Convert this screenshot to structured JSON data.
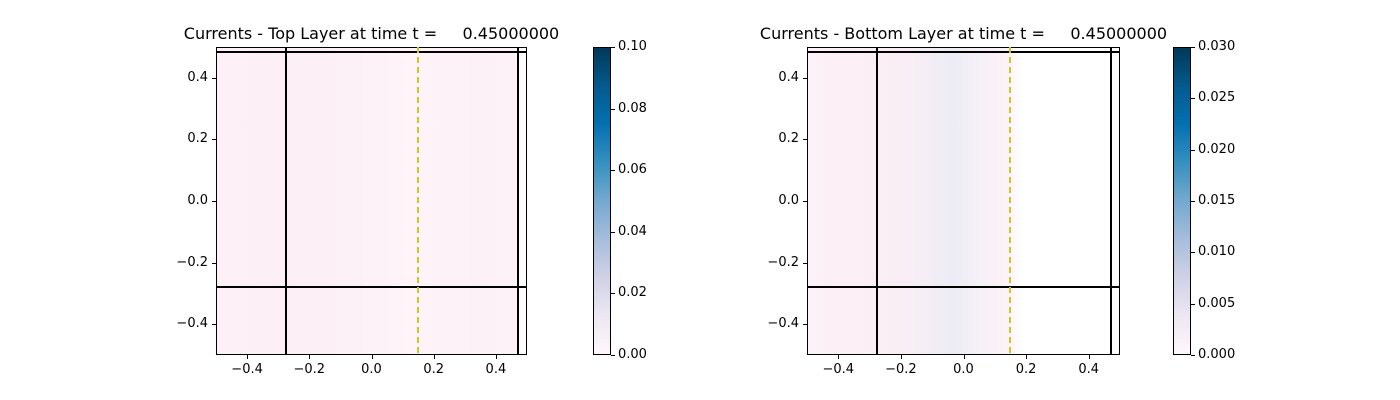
{
  "figure": {
    "background": "#ffffff",
    "text_color": "#000000",
    "spine_color": "#000000"
  },
  "chart_data": [
    {
      "type": "heatmap",
      "title": "Currents - Top Layer at time t =     0.45000000",
      "xlabel": "",
      "ylabel": "",
      "xlim": [
        -0.5,
        0.5
      ],
      "ylim": [
        -0.5,
        0.5
      ],
      "xticks": [
        -0.4,
        -0.2,
        0.0,
        0.2,
        0.4
      ],
      "yticks": [
        0.4,
        0.2,
        0.0,
        -0.2,
        -0.4
      ],
      "xtick_labels": [
        "−0.4",
        "−0.2",
        "0.0",
        "0.2",
        "0.4"
      ],
      "ytick_labels": [
        "0.4",
        "0.2",
        "0.0",
        "−0.2",
        "−0.4"
      ],
      "grid": false,
      "overlays": [
        {
          "name": "boundary-line-top",
          "orient": "h",
          "value": 0.483,
          "color": "#000000",
          "style": "solid",
          "thickness": 2
        },
        {
          "name": "boundary-line-bottom",
          "orient": "h",
          "value": -0.28,
          "color": "#000000",
          "style": "solid",
          "thickness": 2
        },
        {
          "name": "boundary-line-left",
          "orient": "v",
          "value": -0.275,
          "color": "#000000",
          "style": "solid",
          "thickness": 2
        },
        {
          "name": "boundary-line-right",
          "orient": "v",
          "value": 0.47,
          "color": "#000000",
          "style": "solid",
          "thickness": 2
        },
        {
          "name": "dashed-marker-line",
          "orient": "v",
          "value": 0.15,
          "color": "#d4c21f",
          "style": "dashed",
          "thickness": 2
        }
      ],
      "field_shading": [
        {
          "pos": 0,
          "color": "#fdf0f6"
        },
        {
          "pos": 25,
          "color": "#fcf0f6"
        },
        {
          "pos": 45,
          "color": "#fcf1f7"
        },
        {
          "pos": 58,
          "color": "#fdf3f9"
        },
        {
          "pos": 64,
          "color": "#fef4f9"
        },
        {
          "pos": 72,
          "color": "#fdf2f8"
        },
        {
          "pos": 86,
          "color": "#fcf1f7"
        },
        {
          "pos": 96.6,
          "color": "#fdf2f8"
        },
        {
          "pos": 97.2,
          "color": "#fefcfd"
        },
        {
          "pos": 100,
          "color": "#fefcfd"
        }
      ],
      "colorbar": {
        "vmin": 0.0,
        "vmax": 0.1,
        "tick_labels": [
          "0.10",
          "0.08",
          "0.06",
          "0.04",
          "0.02",
          "0.00"
        ],
        "colormap": "PuBu",
        "gradient": [
          {
            "pos": 0,
            "color": "#023858"
          },
          {
            "pos": 12.5,
            "color": "#045a8d"
          },
          {
            "pos": 25,
            "color": "#0570b0"
          },
          {
            "pos": 37.5,
            "color": "#3690c0"
          },
          {
            "pos": 50,
            "color": "#74a9cf"
          },
          {
            "pos": 62.5,
            "color": "#a6bddb"
          },
          {
            "pos": 75,
            "color": "#d0d1e6"
          },
          {
            "pos": 87.5,
            "color": "#ece7f2"
          },
          {
            "pos": 100,
            "color": "#fff7fb"
          }
        ]
      }
    },
    {
      "type": "heatmap",
      "title": "Currents - Bottom Layer at time t =     0.45000000",
      "xlabel": "",
      "ylabel": "",
      "xlim": [
        -0.5,
        0.5
      ],
      "ylim": [
        -0.5,
        0.5
      ],
      "xticks": [
        -0.4,
        -0.2,
        0.0,
        0.2,
        0.4
      ],
      "yticks": [
        0.4,
        0.2,
        0.0,
        -0.2,
        -0.4
      ],
      "xtick_labels": [
        "−0.4",
        "−0.2",
        "0.0",
        "0.2",
        "0.4"
      ],
      "ytick_labels": [
        "0.4",
        "0.2",
        "0.0",
        "−0.2",
        "−0.4"
      ],
      "grid": false,
      "overlays": [
        {
          "name": "boundary-line-top",
          "orient": "h",
          "value": 0.483,
          "color": "#000000",
          "style": "solid",
          "thickness": 2
        },
        {
          "name": "boundary-line-bottom",
          "orient": "h",
          "value": -0.28,
          "color": "#000000",
          "style": "solid",
          "thickness": 2
        },
        {
          "name": "boundary-line-left",
          "orient": "v",
          "value": -0.275,
          "color": "#000000",
          "style": "solid",
          "thickness": 2
        },
        {
          "name": "boundary-line-right",
          "orient": "v",
          "value": 0.47,
          "color": "#000000",
          "style": "solid",
          "thickness": 2
        },
        {
          "name": "dashed-marker-line",
          "orient": "v",
          "value": 0.15,
          "color": "#d4c21f",
          "style": "dashed",
          "thickness": 2
        }
      ],
      "field_shading": [
        {
          "pos": 0,
          "color": "#fdf2f8"
        },
        {
          "pos": 8,
          "color": "#fcf0f6"
        },
        {
          "pos": 22,
          "color": "#fbeff5"
        },
        {
          "pos": 32,
          "color": "#f9eef5"
        },
        {
          "pos": 38,
          "color": "#f4edf5"
        },
        {
          "pos": 43,
          "color": "#efedf5"
        },
        {
          "pos": 46,
          "color": "#ececf4"
        },
        {
          "pos": 50,
          "color": "#f0eef6"
        },
        {
          "pos": 55,
          "color": "#f6f0f7"
        },
        {
          "pos": 60,
          "color": "#faf1f7"
        },
        {
          "pos": 64,
          "color": "#fcf3f8"
        },
        {
          "pos": 66,
          "color": "#fdf7fb"
        },
        {
          "pos": 69,
          "color": "#ffffff"
        },
        {
          "pos": 100,
          "color": "#ffffff"
        }
      ],
      "colorbar": {
        "vmin": 0.0,
        "vmax": 0.03,
        "tick_labels": [
          "0.030",
          "0.025",
          "0.020",
          "0.015",
          "0.010",
          "0.005",
          "0.000"
        ],
        "colormap": "PuBu",
        "gradient": [
          {
            "pos": 0,
            "color": "#023858"
          },
          {
            "pos": 12.5,
            "color": "#045a8d"
          },
          {
            "pos": 25,
            "color": "#0570b0"
          },
          {
            "pos": 37.5,
            "color": "#3690c0"
          },
          {
            "pos": 50,
            "color": "#74a9cf"
          },
          {
            "pos": 62.5,
            "color": "#a6bddb"
          },
          {
            "pos": 75,
            "color": "#d0d1e6"
          },
          {
            "pos": 87.5,
            "color": "#ece7f2"
          },
          {
            "pos": 100,
            "color": "#fff7fb"
          }
        ]
      }
    }
  ]
}
